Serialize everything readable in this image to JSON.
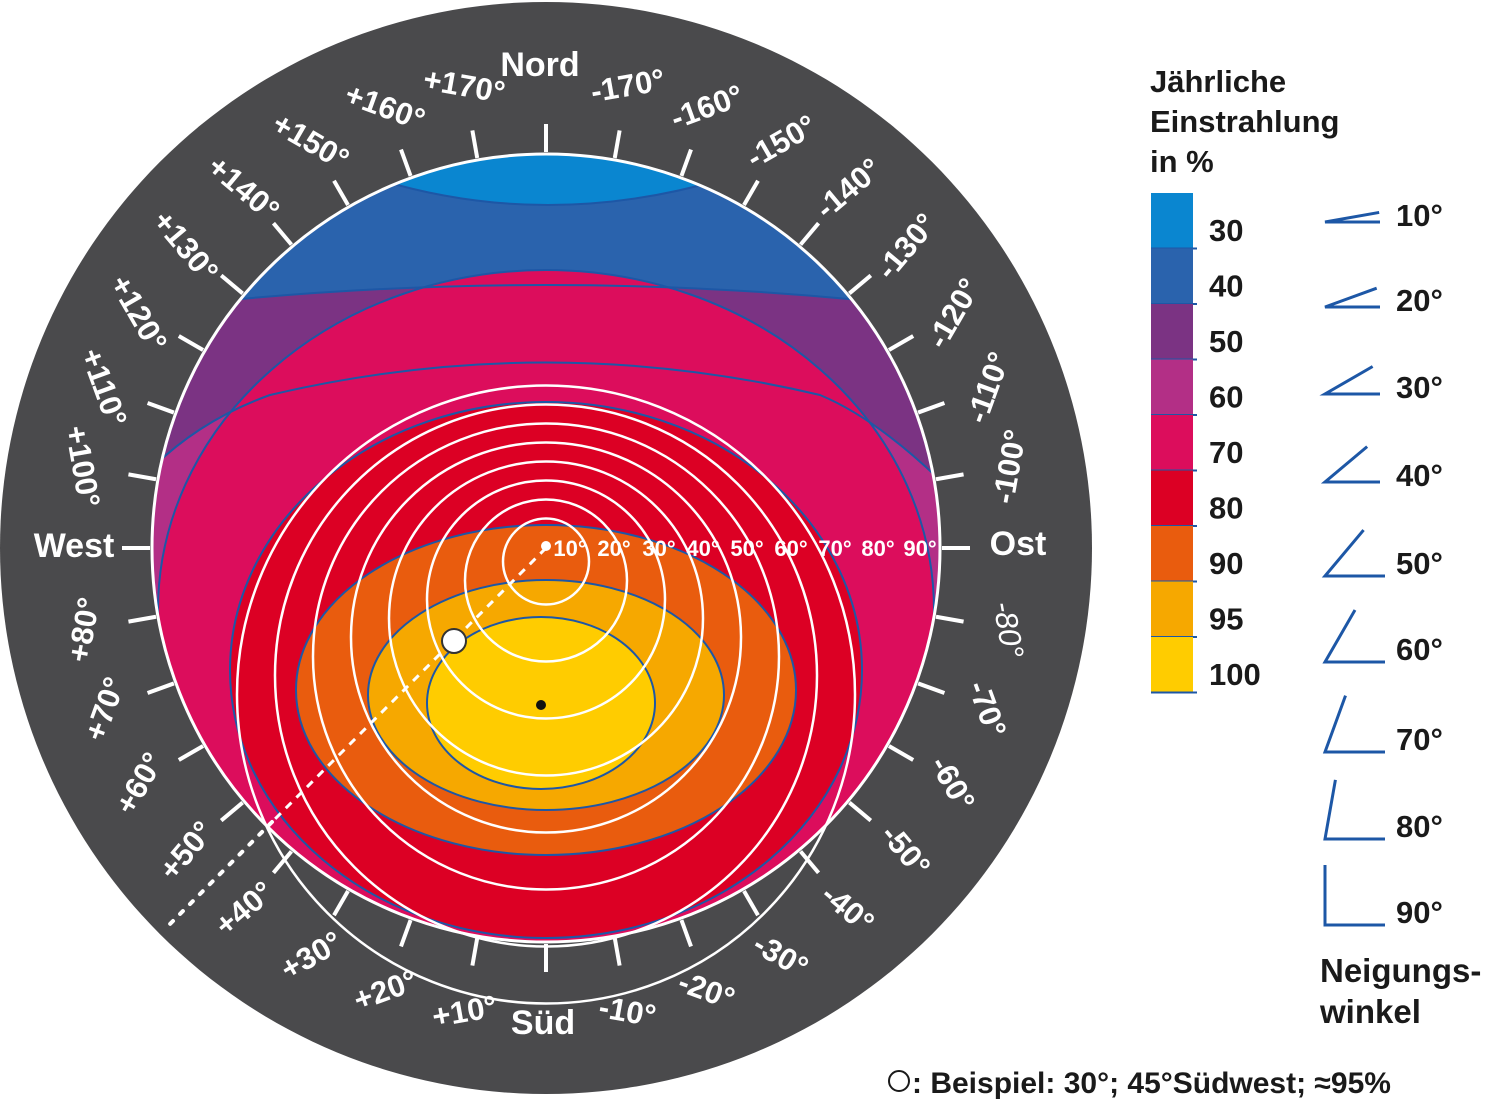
{
  "compass": {
    "north": "Nord",
    "south": "Süd",
    "west": "West",
    "east": "Ost",
    "azimuth_labels": [
      "+10°",
      "+20°",
      "+30°",
      "+40°",
      "+50°",
      "+60°",
      "+70°",
      "+80°",
      "+100°",
      "+110°",
      "+120°",
      "+130°",
      "+140°",
      "+150°",
      "+160°",
      "+170°",
      "-170°",
      "-160°",
      "-150°",
      "-140°",
      "-130°",
      "-120°",
      "-110°",
      "-100°",
      "-80°",
      "-70°",
      "-60°",
      "-50°",
      "-40°",
      "-30°",
      "-20°",
      "-10°"
    ]
  },
  "ring_labels": [
    "10°",
    "20°",
    "30°",
    "40°",
    "50°",
    "60°",
    "70°",
    "80°",
    "90°"
  ],
  "legend": {
    "title_lines": [
      "Jährliche",
      "Einstrahlung",
      "in %"
    ],
    "bands": [
      {
        "label": "30",
        "color": "#0a86d0"
      },
      {
        "label": "40",
        "color": "#2a63ad"
      },
      {
        "label": "50",
        "color": "#7b3383"
      },
      {
        "label": "60",
        "color": "#b32f86"
      },
      {
        "label": "70",
        "color": "#dc0d5c"
      },
      {
        "label": "80",
        "color": "#dc0024"
      },
      {
        "label": "90",
        "color": "#e95c0e"
      },
      {
        "label": "95",
        "color": "#f6a800"
      },
      {
        "label": "100",
        "color": "#ffcc00"
      }
    ]
  },
  "tilt_legend": {
    "items": [
      "10°",
      "20°",
      "30°",
      "40°",
      "50°",
      "60°",
      "70°",
      "80°",
      "90°"
    ],
    "title_lines": [
      "Neigungs-",
      "winkel"
    ],
    "line_color": "#1d57a6"
  },
  "example_note": ": Beispiel: 30°; 45°Südwest; ≈95%",
  "colors": {
    "frame": "#4a4a4c",
    "ring_line": "#ffffff",
    "contour_line": "#1d57a6"
  }
}
